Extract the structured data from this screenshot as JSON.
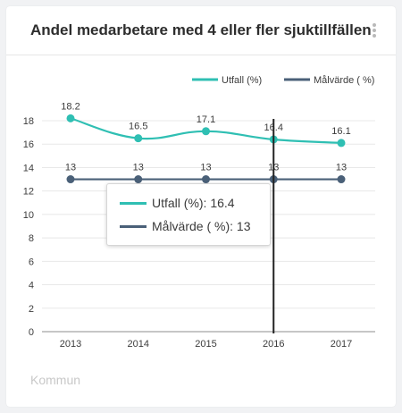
{
  "card": {
    "title": "Andel medarbetare med 4 eller fler sjuktillfällen",
    "footer": "Kommun"
  },
  "chart_data": {
    "type": "line",
    "categories": [
      "2013",
      "2014",
      "2015",
      "2016",
      "2017"
    ],
    "series": [
      {
        "name": "Utfall (%)",
        "values": [
          18.2,
          16.5,
          17.1,
          16.4,
          16.1
        ],
        "labels": [
          "18.2",
          "16.5",
          "17.1",
          "16.4",
          "16.1"
        ],
        "color": "#2fbfb3",
        "smooth": true
      },
      {
        "name": "Målvärde ( %)",
        "values": [
          13,
          13,
          13,
          13,
          13
        ],
        "labels": [
          "13",
          "13",
          "13",
          "13",
          "13"
        ],
        "color": "#4a6078",
        "smooth": false
      }
    ],
    "ylim": [
      0,
      18
    ],
    "yticks": [
      "0",
      "2",
      "4",
      "6",
      "8",
      "10",
      "12",
      "14",
      "16",
      "18"
    ],
    "legend_position": "top-right",
    "grid": true,
    "hover_category": "2016"
  },
  "tooltip": {
    "rows": [
      {
        "label": "Utfall (%): 16.4",
        "color": "#2fbfb3"
      },
      {
        "label": "Målvärde ( %): 13",
        "color": "#4a6078"
      }
    ]
  }
}
